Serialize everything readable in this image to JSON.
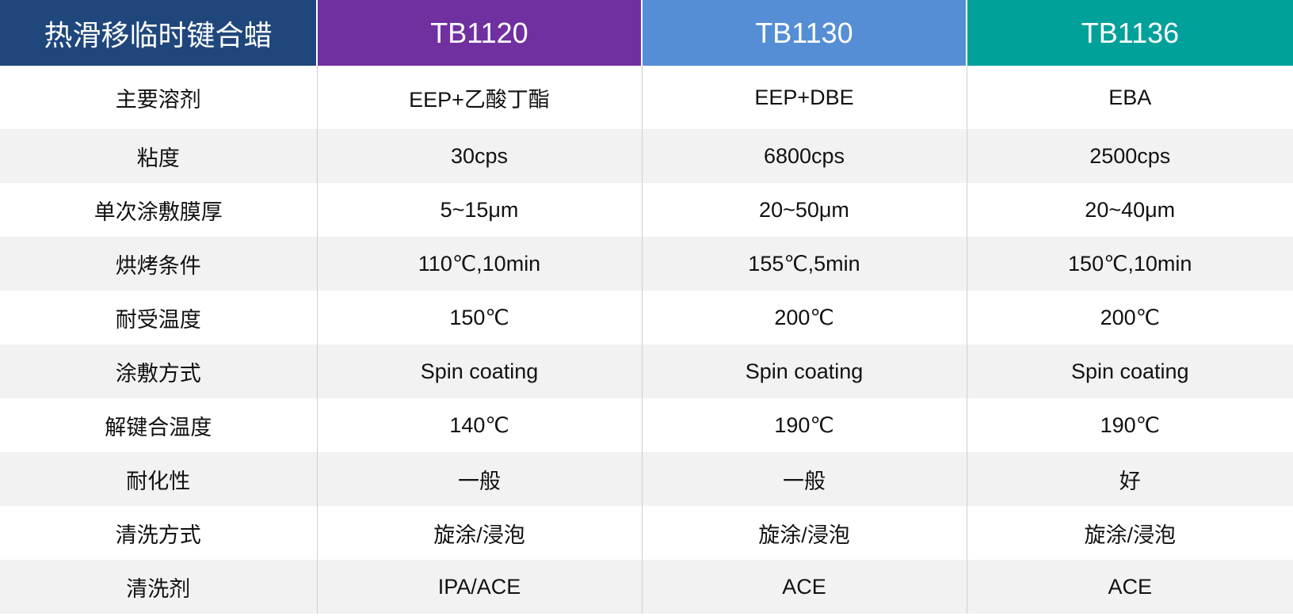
{
  "table": {
    "header": [
      "热滑移临时键合蜡",
      "TB1120",
      "TB1130",
      "TB1136"
    ],
    "rows": [
      [
        "主要溶剂",
        "EEP+乙酸丁酯",
        "EEP+DBE",
        "EBA"
      ],
      [
        "粘度",
        "30cps",
        "6800cps",
        "2500cps"
      ],
      [
        "单次涂敷膜厚",
        "5~15μm",
        "20~50μm",
        "20~40μm"
      ],
      [
        "烘烤条件",
        "110℃,10min",
        "155℃,5min",
        "150℃,10min"
      ],
      [
        "耐受温度",
        "150℃",
        "200℃",
        "200℃"
      ],
      [
        "涂敷方式",
        "Spin coating",
        "Spin coating",
        "Spin coating"
      ],
      [
        "解键合温度",
        "140℃",
        "190℃",
        "190℃"
      ],
      [
        "耐化性",
        "一般",
        "一般",
        "好"
      ],
      [
        "清洗方式",
        "旋涂/浸泡",
        "旋涂/浸泡",
        "旋涂/浸泡"
      ],
      [
        "清洗剂",
        "IPA/ACE",
        "ACE",
        "ACE"
      ]
    ]
  }
}
